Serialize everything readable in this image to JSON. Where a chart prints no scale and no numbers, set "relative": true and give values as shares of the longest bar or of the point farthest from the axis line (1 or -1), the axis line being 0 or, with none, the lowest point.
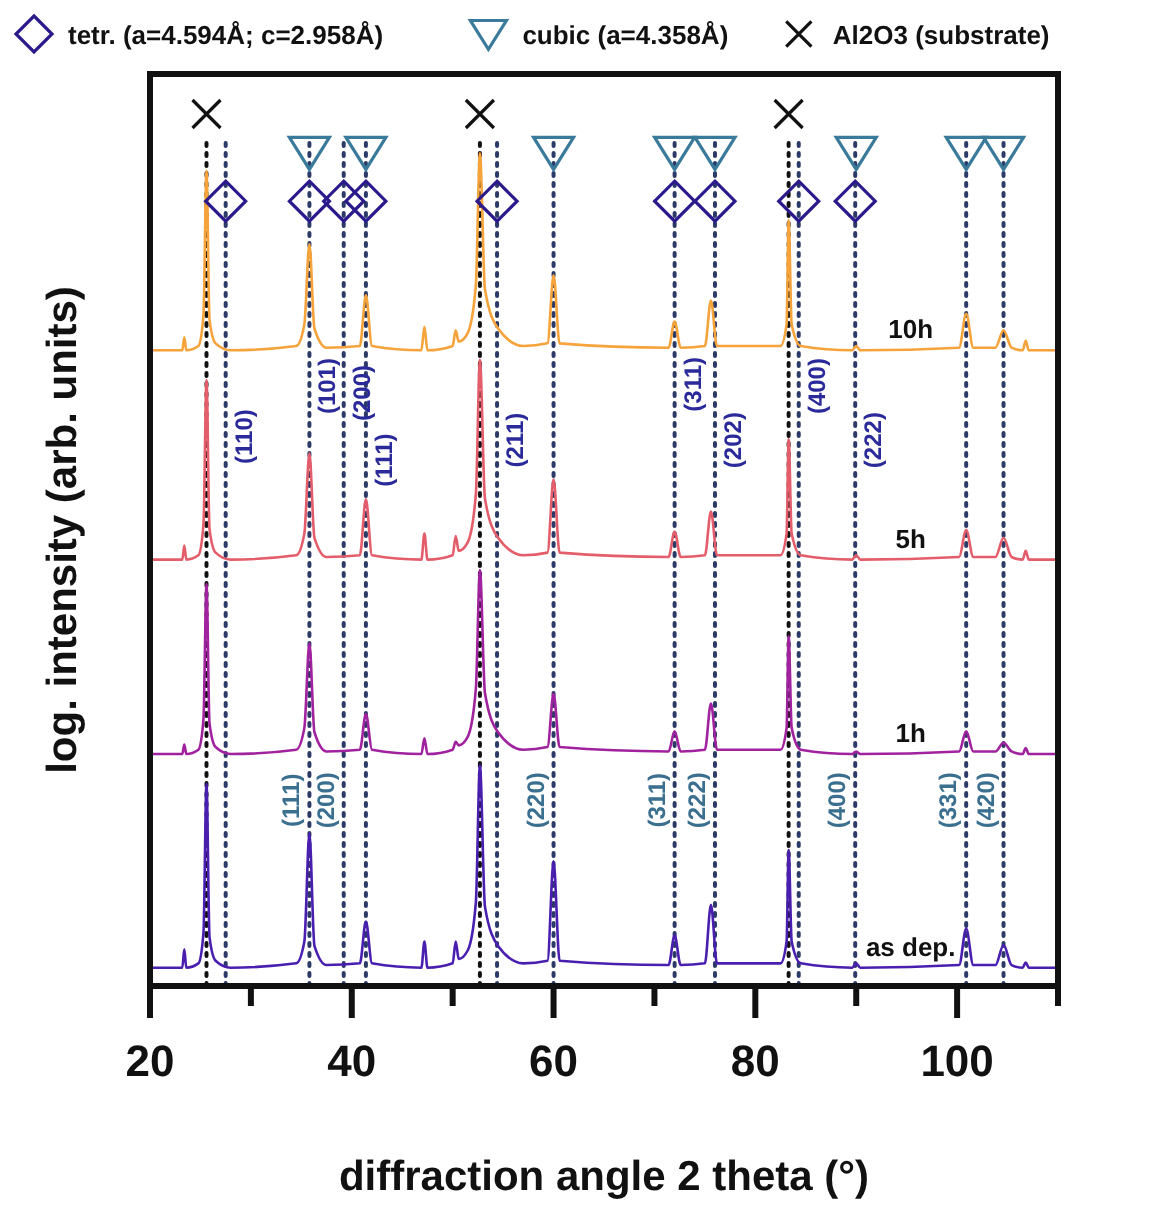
{
  "chart_data": {
    "type": "line",
    "relative": true,
    "xlabel": "diffraction angle 2 theta (°)",
    "ylabel": "log. intensity (arb. units)",
    "xlim": [
      20,
      110
    ],
    "xticks": [
      20,
      {
        "value": 30,
        "label": null
      },
      40,
      {
        "value": 50,
        "label": null
      },
      60,
      {
        "value": 70,
        "label": null
      },
      80,
      {
        "value": 90,
        "label": null
      },
      100,
      {
        "value": 110,
        "label": null
      }
    ],
    "tick_labels": "x",
    "grid": false,
    "legend": "top",
    "marker": "none",
    "line_style": "solid",
    "x": [
      20,
      23.2,
      23.4,
      23.6,
      24.8,
      25.3,
      25.6,
      25.9,
      26.5,
      28,
      34.5,
      35.3,
      35.8,
      36.3,
      37.5,
      40.8,
      41.4,
      42,
      46.9,
      47.2,
      47.5,
      50,
      50.3,
      50.6,
      51.5,
      52.3,
      52.7,
      53.2,
      54.5,
      57,
      59.4,
      60,
      60.6,
      71.4,
      72,
      72.6,
      75,
      75.6,
      76.2,
      82.5,
      83.1,
      83.3,
      83.6,
      84.5,
      89.6,
      90,
      90.4,
      100.2,
      100.9,
      101.6,
      103.8,
      104.6,
      105.4,
      106.5,
      106.8,
      107.1,
      110
    ],
    "series": [
      {
        "name": "10h",
        "color": "#f5a33a",
        "values": [
          0.729,
          0.729,
          0.744,
          0.729,
          0.734,
          0.769,
          0.935,
          0.764,
          0.737,
          0.729,
          0.734,
          0.759,
          0.851,
          0.754,
          0.732,
          0.734,
          0.792,
          0.734,
          0.729,
          0.756,
          0.729,
          0.734,
          0.752,
          0.739,
          0.749,
          0.804,
          0.955,
          0.799,
          0.754,
          0.734,
          0.737,
          0.815,
          0.737,
          0.732,
          0.762,
          0.732,
          0.734,
          0.786,
          0.734,
          0.734,
          0.759,
          0.878,
          0.759,
          0.734,
          0.729,
          0.734,
          0.729,
          0.732,
          0.771,
          0.732,
          0.732,
          0.752,
          0.732,
          0.729,
          0.74,
          0.729,
          0.729
        ]
      },
      {
        "name": "5h",
        "color": "#e35d6a",
        "values": [
          0.489,
          0.489,
          0.505,
          0.489,
          0.494,
          0.529,
          0.695,
          0.524,
          0.497,
          0.489,
          0.494,
          0.519,
          0.611,
          0.514,
          0.492,
          0.494,
          0.558,
          0.494,
          0.489,
          0.519,
          0.489,
          0.494,
          0.516,
          0.499,
          0.509,
          0.564,
          0.718,
          0.559,
          0.514,
          0.494,
          0.497,
          0.581,
          0.497,
          0.492,
          0.521,
          0.492,
          0.494,
          0.544,
          0.494,
          0.494,
          0.519,
          0.627,
          0.519,
          0.494,
          0.489,
          0.494,
          0.489,
          0.492,
          0.523,
          0.492,
          0.492,
          0.514,
          0.492,
          0.489,
          0.499,
          0.489,
          0.489
        ]
      },
      {
        "name": "1h",
        "color": "#a0229f",
        "values": [
          0.266,
          0.266,
          0.277,
          0.266,
          0.271,
          0.306,
          0.461,
          0.301,
          0.274,
          0.266,
          0.271,
          0.296,
          0.393,
          0.291,
          0.269,
          0.271,
          0.312,
          0.271,
          0.266,
          0.284,
          0.266,
          0.271,
          0.28,
          0.276,
          0.286,
          0.341,
          0.477,
          0.336,
          0.291,
          0.271,
          0.274,
          0.335,
          0.274,
          0.269,
          0.292,
          0.269,
          0.271,
          0.324,
          0.271,
          0.271,
          0.296,
          0.401,
          0.296,
          0.271,
          0.266,
          0.269,
          0.266,
          0.269,
          0.292,
          0.269,
          0.269,
          0.279,
          0.269,
          0.266,
          0.273,
          0.266,
          0.266
        ]
      },
      {
        "name": "as dep.",
        "color": "#4a1fb0",
        "values": [
          0.021,
          0.021,
          0.042,
          0.021,
          0.026,
          0.061,
          0.232,
          0.056,
          0.029,
          0.021,
          0.026,
          0.051,
          0.175,
          0.046,
          0.024,
          0.026,
          0.074,
          0.026,
          0.021,
          0.051,
          0.021,
          0.026,
          0.051,
          0.031,
          0.041,
          0.096,
          0.253,
          0.091,
          0.046,
          0.026,
          0.029,
          0.143,
          0.029,
          0.024,
          0.058,
          0.024,
          0.026,
          0.093,
          0.026,
          0.026,
          0.051,
          0.156,
          0.051,
          0.026,
          0.021,
          0.026,
          0.021,
          0.024,
          0.066,
          0.024,
          0.024,
          0.047,
          0.024,
          0.021,
          0.027,
          0.021,
          0.021
        ]
      },
      {
        "name": "tetr. (a=4.594Å; c=2.958Å)",
        "type": "scatter",
        "marker": "diamond",
        "color": "#2a1a8c",
        "x": [
          27.5,
          35.8,
          39.2,
          41.4,
          54.4,
          72.0,
          76.0,
          84.3,
          89.9
        ],
        "values": [
          0.9,
          0.9,
          0.9,
          0.9,
          0.9,
          0.9,
          0.9,
          0.9,
          0.9
        ]
      },
      {
        "name": "cubic (a=4.358Å)",
        "type": "scatter",
        "marker": "triangle",
        "color": "#3a7a9a",
        "x": [
          35.8,
          41.4,
          60.0,
          72.0,
          76.0,
          90.0,
          100.9,
          104.6
        ],
        "values": [
          0.956,
          0.956,
          0.956,
          0.956,
          0.956,
          0.956,
          0.956,
          0.956
        ]
      },
      {
        "name": "Al2O3 (substrate)",
        "type": "scatter",
        "marker": "cross",
        "color": "#111111",
        "x": [
          25.6,
          52.7,
          83.3
        ],
        "values": [
          1,
          1,
          1
        ]
      }
    ],
    "ref_lines": [
      {
        "axis": "x",
        "value": 25.6,
        "color": "#111111",
        "line_style": "dotted"
      },
      {
        "axis": "x",
        "value": 27.5,
        "color": "#2b3a67",
        "line_style": "dotted"
      },
      {
        "axis": "x",
        "value": 35.8,
        "color": "#2b3a67",
        "line_style": "dotted"
      },
      {
        "axis": "x",
        "value": 39.2,
        "color": "#2b3a67",
        "line_style": "dotted"
      },
      {
        "axis": "x",
        "value": 41.4,
        "color": "#2b3a67",
        "line_style": "dotted"
      },
      {
        "axis": "x",
        "value": 52.7,
        "color": "#111111",
        "line_style": "dotted"
      },
      {
        "axis": "x",
        "value": 54.4,
        "color": "#2b3a67",
        "line_style": "dotted"
      },
      {
        "axis": "x",
        "value": 60.0,
        "color": "#2b3a67",
        "line_style": "dotted"
      },
      {
        "axis": "x",
        "value": 72.0,
        "color": "#2b3a67",
        "line_style": "dotted"
      },
      {
        "axis": "x",
        "value": 76.0,
        "color": "#2b3a67",
        "line_style": "dotted"
      },
      {
        "axis": "x",
        "value": 83.3,
        "color": "#111111",
        "line_style": "dotted"
      },
      {
        "axis": "x",
        "value": 84.3,
        "color": "#2b3a67",
        "line_style": "dotted"
      },
      {
        "axis": "x",
        "value": 89.9,
        "color": "#2b3a67",
        "line_style": "dotted"
      },
      {
        "axis": "x",
        "value": 100.9,
        "color": "#2b3a67",
        "line_style": "dotted"
      },
      {
        "axis": "x",
        "value": 104.6,
        "color": "#2b3a67",
        "line_style": "dotted"
      }
    ],
    "annotations": [
      {
        "text": "(110)",
        "x": 27.5,
        "y": 0.63
      },
      {
        "text": "(101)",
        "x": 35.8,
        "y": 0.688
      },
      {
        "text": "(200)",
        "x": 39.2,
        "y": 0.68
      },
      {
        "text": "(111)",
        "x": 41.4,
        "y": 0.603
      },
      {
        "text": "(211)",
        "x": 54.4,
        "y": 0.626
      },
      {
        "text": "(311)",
        "x": 72.0,
        "y": 0.69
      },
      {
        "text": "(202)",
        "x": 76.0,
        "y": 0.626
      },
      {
        "text": "(400)",
        "x": 84.3,
        "y": 0.688
      },
      {
        "text": "(222)",
        "x": 89.9,
        "y": 0.626
      },
      {
        "text": "(111)",
        "x": 35.8,
        "y": 0.213
      },
      {
        "text": "(200)",
        "x": 39.2,
        "y": 0.213
      },
      {
        "text": "(220)",
        "x": 60.0,
        "y": 0.213
      },
      {
        "text": "(311)",
        "x": 72.0,
        "y": 0.213
      },
      {
        "text": "(222)",
        "x": 76.0,
        "y": 0.213
      },
      {
        "text": "(400)",
        "x": 89.9,
        "y": 0.213
      },
      {
        "text": "(331)",
        "x": 100.9,
        "y": 0.213
      },
      {
        "text": "(420)",
        "x": 104.6,
        "y": 0.213
      }
    ]
  }
}
